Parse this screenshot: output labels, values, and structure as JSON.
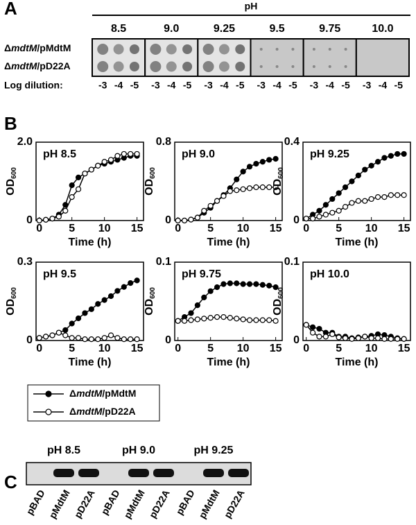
{
  "panel_a": {
    "letter": "A",
    "header": "pH",
    "columns": [
      "8.5",
      "9.0",
      "9.25",
      "9.5",
      "9.75",
      "10.0"
    ],
    "rows": [
      {
        "prefix": "Δ",
        "italic": "mdtM",
        "suffix": "/pMdtM"
      },
      {
        "prefix": "Δ",
        "italic": "mdtM",
        "suffix": "/pD22A"
      }
    ],
    "dilution_label": "Log dilution:",
    "dilutions": [
      "-3",
      "-4",
      "-5"
    ]
  },
  "panel_b": {
    "letter": "B"
  },
  "chart_data": [
    {
      "type": "line",
      "title": "pH 8.5",
      "xlabel": "Time (h)",
      "ylabel": {
        "main": "OD",
        "sub": "600"
      },
      "x": [
        0,
        1,
        2,
        3,
        4,
        5,
        6,
        7,
        8,
        9,
        10,
        11,
        12,
        13,
        14,
        15
      ],
      "xlim": [
        -0.5,
        16
      ],
      "xticks": [
        0,
        5,
        10,
        15
      ],
      "ylim": [
        0,
        2
      ],
      "yticks": [
        0,
        {
          "value": 2,
          "label": "2.0"
        }
      ],
      "series": [
        {
          "color": "#000000",
          "fill": "#000000",
          "values": [
            0,
            0.02,
            0.05,
            0.15,
            0.4,
            0.9,
            1.1,
            1.2,
            1.3,
            1.4,
            1.45,
            1.5,
            1.55,
            1.6,
            1.65,
            1.65
          ]
        },
        {
          "color": "#000000",
          "fill": "#ffffff",
          "values": [
            0,
            0.02,
            0.05,
            0.1,
            0.25,
            0.6,
            0.8,
            1.2,
            1.3,
            1.4,
            1.5,
            1.55,
            1.65,
            1.7,
            1.7,
            1.7
          ]
        }
      ]
    },
    {
      "type": "line",
      "title": "pH 9.0",
      "xlabel": "Time (h)",
      "ylabel": {
        "main": "OD",
        "sub": "600"
      },
      "x": [
        0,
        1,
        2,
        3,
        4,
        5,
        6,
        7,
        8,
        9,
        10,
        11,
        12,
        13,
        14,
        15
      ],
      "xlim": [
        -0.5,
        16
      ],
      "xticks": [
        0,
        5,
        10,
        15
      ],
      "ylim": [
        0,
        0.8
      ],
      "yticks": [
        0,
        0.8
      ],
      "series": [
        {
          "color": "#000000",
          "fill": "#000000",
          "values": [
            0,
            0,
            0.01,
            0.03,
            0.08,
            0.13,
            0.2,
            0.26,
            0.33,
            0.42,
            0.5,
            0.55,
            0.58,
            0.6,
            0.62,
            0.63
          ]
        },
        {
          "color": "#000000",
          "fill": "#ffffff",
          "values": [
            0,
            0,
            0.01,
            0.03,
            0.1,
            0.15,
            0.2,
            0.25,
            0.3,
            0.31,
            0.32,
            0.33,
            0.34,
            0.34,
            0.34,
            0.34
          ]
        }
      ]
    },
    {
      "type": "line",
      "title": "pH 9.25",
      "xlabel": "Time (h)",
      "ylabel": {
        "main": "OD",
        "sub": "600"
      },
      "x": [
        0,
        1,
        2,
        3,
        4,
        5,
        6,
        7,
        8,
        9,
        10,
        11,
        12,
        13,
        14,
        15
      ],
      "xlim": [
        -0.5,
        16
      ],
      "xticks": [
        0,
        5,
        10,
        15
      ],
      "ylim": [
        0,
        0.4
      ],
      "yticks": [
        0,
        0.4
      ],
      "series": [
        {
          "color": "#000000",
          "fill": "#000000",
          "values": [
            0.01,
            0.03,
            0.05,
            0.08,
            0.11,
            0.14,
            0.17,
            0.2,
            0.23,
            0.26,
            0.28,
            0.3,
            0.32,
            0.33,
            0.34,
            0.34
          ]
        },
        {
          "color": "#000000",
          "fill": "#ffffff",
          "values": [
            0.01,
            0.01,
            0.02,
            0.03,
            0.04,
            0.05,
            0.07,
            0.09,
            0.1,
            0.1,
            0.11,
            0.12,
            0.12,
            0.13,
            0.13,
            0.13
          ]
        }
      ]
    },
    {
      "type": "line",
      "title": "pH 9.5",
      "xlabel": "Time (h)",
      "ylabel": {
        "main": "OD",
        "sub": "600"
      },
      "x": [
        0,
        1,
        2,
        3,
        4,
        5,
        6,
        7,
        8,
        9,
        10,
        11,
        12,
        13,
        14,
        15
      ],
      "xlim": [
        -0.5,
        16
      ],
      "xticks": [
        0,
        5,
        10,
        15
      ],
      "ylim": [
        0,
        0.3
      ],
      "yticks": [
        0,
        0.3
      ],
      "series": [
        {
          "color": "#000000",
          "fill": "#000000",
          "values": [
            0.01,
            0.015,
            0.02,
            0.03,
            0.04,
            0.065,
            0.085,
            0.105,
            0.12,
            0.14,
            0.155,
            0.17,
            0.19,
            0.205,
            0.22,
            0.23
          ]
        },
        {
          "color": "#000000",
          "fill": "#ffffff",
          "values": [
            0.01,
            0.015,
            0.02,
            0.03,
            0.02,
            0.01,
            0.01,
            0.005,
            0.005,
            0.005,
            0.01,
            0.02,
            0.01,
            0.005,
            0.005,
            0.005
          ]
        }
      ]
    },
    {
      "type": "line",
      "title": "pH 9.75",
      "xlabel": "Time (h)",
      "ylabel": {
        "main": "OD",
        "sub": "600"
      },
      "x": [
        0,
        1,
        2,
        3,
        4,
        5,
        6,
        7,
        8,
        9,
        10,
        11,
        12,
        13,
        14,
        15
      ],
      "xlim": [
        -0.5,
        16
      ],
      "xticks": [
        0,
        5,
        10,
        15
      ],
      "ylim": [
        0,
        0.1
      ],
      "yticks": [
        0,
        0.1
      ],
      "series": [
        {
          "color": "#000000",
          "fill": "#000000",
          "values": [
            0.025,
            0.03,
            0.035,
            0.045,
            0.055,
            0.063,
            0.068,
            0.072,
            0.073,
            0.073,
            0.072,
            0.072,
            0.072,
            0.071,
            0.07,
            0.068
          ]
        },
        {
          "color": "#000000",
          "fill": "#ffffff",
          "values": [
            0.025,
            0.025,
            0.026,
            0.027,
            0.028,
            0.029,
            0.03,
            0.03,
            0.029,
            0.028,
            0.027,
            0.026,
            0.026,
            0.026,
            0.026,
            0.025
          ]
        }
      ]
    },
    {
      "type": "line",
      "title": "pH 10.0",
      "xlabel": "Time (h)",
      "ylabel": {
        "main": "OD",
        "sub": "600"
      },
      "x": [
        0,
        1,
        2,
        3,
        4,
        5,
        6,
        7,
        8,
        9,
        10,
        11,
        12,
        13,
        14,
        15
      ],
      "xlim": [
        -0.5,
        16
      ],
      "xticks": [
        0,
        5,
        10,
        15
      ],
      "ylim": [
        0,
        0.1
      ],
      "yticks": [
        0,
        0.1
      ],
      "series": [
        {
          "color": "#000000",
          "fill": "#000000",
          "values": [
            0.02,
            0.017,
            0.015,
            0.01,
            0.01,
            0.005,
            0.005,
            0.003,
            0.004,
            0.005,
            0.006,
            0.008,
            0.007,
            0.005,
            0.003,
            0.002
          ]
        },
        {
          "color": "#000000",
          "fill": "#ffffff",
          "values": [
            0.02,
            0.01,
            0.005,
            0.005,
            0.008,
            0.004,
            0.003,
            0.002,
            0.003,
            0.005,
            0.003,
            0.003,
            0.002,
            0.002,
            0.002,
            0.002
          ]
        }
      ]
    }
  ],
  "legend": [
    {
      "prefix": "Δ",
      "italic": "mdtM",
      "suffix": "/pMdtM",
      "fill": "#000000"
    },
    {
      "prefix": "Δ",
      "italic": "mdtM",
      "suffix": "/pD22A",
      "fill": "#ffffff"
    }
  ],
  "panel_c": {
    "letter": "C",
    "groups": [
      "pH 8.5",
      "pH 9.0",
      "pH 9.25"
    ],
    "lanes": [
      "pBAD",
      "pMdtM",
      "pD22A"
    ]
  }
}
